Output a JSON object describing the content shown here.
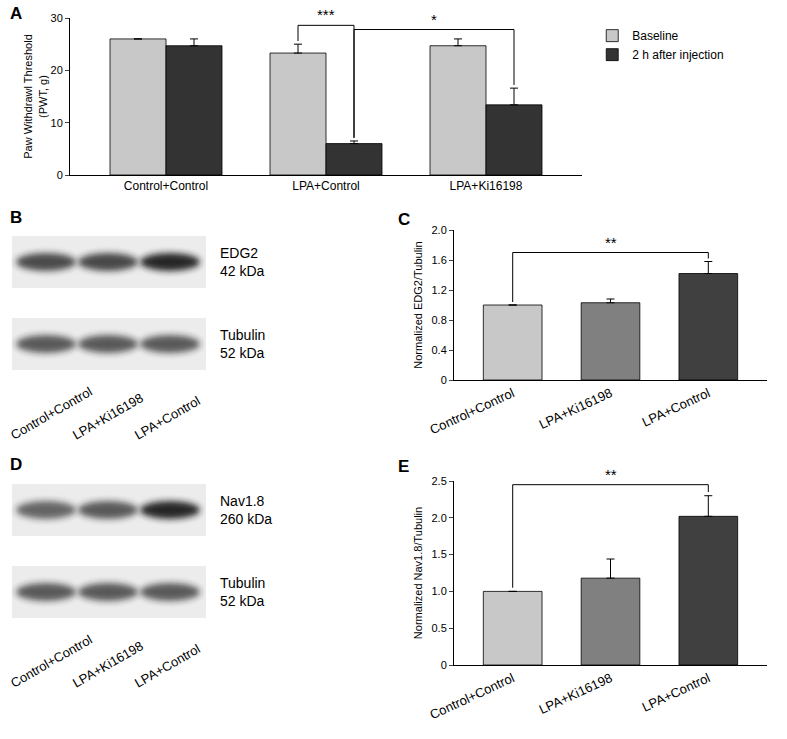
{
  "chart_data": [
    {
      "panel": "A",
      "type": "bar",
      "y_label": [
        "Paw Withdrawl Threshold",
        "(PWT, g)"
      ],
      "categories": [
        "Control+Control",
        "LPA+Control",
        "LPA+Ki16198"
      ],
      "series": [
        {
          "name": "Baseline",
          "color": "#c8c8c8",
          "values": [
            26,
            23.3,
            24.7
          ],
          "errors": [
            null,
            1.7,
            1.3
          ]
        },
        {
          "name": "2 h after injection",
          "color": "#333333",
          "values": [
            24.7,
            6.0,
            13.4
          ],
          "errors": [
            1.3,
            0.5,
            3.2
          ]
        }
      ],
      "ylim": [
        0,
        30
      ],
      "yticks": [
        0,
        10,
        20,
        30
      ],
      "grid": false,
      "legend": "top right",
      "significance": [
        {
          "from": [
            1,
            0
          ],
          "to": [
            1,
            1
          ],
          "label": "***"
        },
        {
          "from": [
            1,
            1
          ],
          "to": [
            2,
            1
          ],
          "label": "*"
        }
      ]
    },
    {
      "panel": "C",
      "type": "bar",
      "y_label": [
        "Normalized EDG2/Tubulin"
      ],
      "categories": [
        "Control+Control",
        "LPA+Ki16198",
        "LPA+Control"
      ],
      "values": [
        1.0,
        1.03,
        1.42
      ],
      "errors": [
        null,
        0.05,
        0.16
      ],
      "colors": [
        "#c8c8c8",
        "#808080",
        "#404040"
      ],
      "ylim": [
        0,
        2
      ],
      "yticks": [
        0,
        0.4,
        0.8,
        1.2,
        1.6,
        {
          "value": 2,
          "label": "2.0"
        }
      ],
      "grid": false,
      "significance": [
        {
          "from": 0,
          "to": 2,
          "label": "**"
        }
      ]
    },
    {
      "panel": "E",
      "type": "bar",
      "y_label": [
        "Normalized Nav1.8/Tubulin"
      ],
      "categories": [
        "Control+Control",
        "LPA+Ki16198",
        "LPA+Control"
      ],
      "values": [
        1.0,
        1.18,
        2.02
      ],
      "errors": [
        null,
        0.26,
        0.28
      ],
      "colors": [
        "#c8c8c8",
        "#808080",
        "#404040"
      ],
      "ylim": [
        0,
        2.5
      ],
      "yticks": [
        0,
        0.5,
        {
          "value": 1,
          "label": "1.0"
        },
        1.5,
        {
          "value": 2,
          "label": "2.0"
        },
        2.5
      ],
      "grid": false,
      "significance": [
        {
          "from": 0,
          "to": 2,
          "label": "**"
        }
      ]
    }
  ],
  "blots": [
    {
      "panel": "B",
      "protein": "EDG2",
      "protein_kda": "42 kDa",
      "loading": "Tubulin",
      "loading_kda": "52 kDa",
      "lanes": [
        "Control+Control",
        "LPA+Ki16198",
        "LPA+Control"
      ]
    },
    {
      "panel": "D",
      "protein": "Nav1.8",
      "protein_kda": "260 kDa",
      "loading": "Tubulin",
      "loading_kda": "52 kDa",
      "lanes": [
        "Control+Control",
        "LPA+Ki16198",
        "LPA+Control"
      ]
    }
  ]
}
